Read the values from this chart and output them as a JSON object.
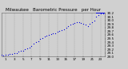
{
  "title": "Milwaukee   Barometric Pressure   per Hour",
  "bg_color": "#d0d0d0",
  "plot_bg_color": "#d0d0d0",
  "dot_color": "#0000dd",
  "grid_color": "#888888",
  "text_color": "#000000",
  "ylim": [
    29.0,
    30.22
  ],
  "xlim": [
    0,
    24
  ],
  "ytick_labels": [
    "29.0",
    "29.1",
    "29.2",
    "29.3",
    "29.4",
    "29.5",
    "29.6",
    "29.7",
    "29.8",
    "29.9",
    "30.0",
    "30.1",
    "30.2"
  ],
  "ytick_values": [
    29.0,
    29.1,
    29.2,
    29.3,
    29.4,
    29.5,
    29.6,
    29.7,
    29.8,
    29.9,
    30.0,
    30.1,
    30.2
  ],
  "xtick_values": [
    1,
    3,
    5,
    7,
    9,
    11,
    13,
    15,
    17,
    19,
    21,
    23
  ],
  "xtick_labels": [
    "1",
    "3",
    "5",
    "7",
    "9",
    "11",
    "13",
    "15",
    "17",
    "19",
    "21",
    "23"
  ],
  "hours": [
    0,
    0.5,
    1,
    1.5,
    2,
    2.5,
    3,
    3.5,
    4,
    4.5,
    5,
    5.5,
    6,
    6.5,
    7,
    7.5,
    8,
    8.5,
    9,
    9.5,
    10,
    10.5,
    11,
    11.5,
    12,
    12.5,
    13,
    13.5,
    14,
    14.5,
    15,
    15.5,
    16,
    16.5,
    17,
    17.5,
    18,
    18.5,
    19,
    19.5,
    20,
    20.5,
    21,
    21.5,
    22,
    22.5,
    23,
    23.5
  ],
  "pressure": [
    29.05,
    29.04,
    29.06,
    29.05,
    29.07,
    29.08,
    29.1,
    29.09,
    29.13,
    29.15,
    29.17,
    29.2,
    29.22,
    29.25,
    29.3,
    29.35,
    29.4,
    29.43,
    29.48,
    29.52,
    29.55,
    29.57,
    29.6,
    29.62,
    29.64,
    29.65,
    29.68,
    29.7,
    29.72,
    29.75,
    29.8,
    29.85,
    29.88,
    29.9,
    29.92,
    29.95,
    29.95,
    29.93,
    29.9,
    29.88,
    29.85,
    29.9,
    29.95,
    30.0,
    30.1,
    30.15,
    30.18,
    30.2
  ],
  "bar_x": 22.0,
  "bar_width": 2.0,
  "bar_y": 30.18,
  "bar_height": 0.06,
  "title_fontsize": 4.0,
  "tick_fontsize": 3.0,
  "marker_size": 0.8
}
